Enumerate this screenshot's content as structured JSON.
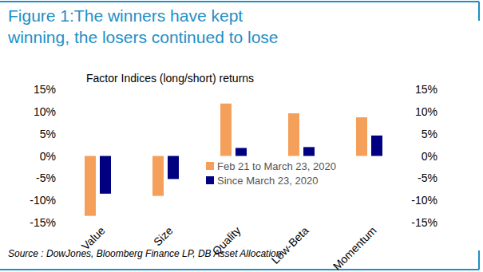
{
  "chart_data": {
    "type": "bar",
    "title": "Figure 1:The winners have kept winning, the losers continued to lose",
    "subtitle": "Factor Indices (long/short) returns",
    "source": "Source : DowJones, Bloomberg Finance LP, DB Asset Allocation",
    "categories": [
      "Value",
      "Size",
      "Quality",
      "Low-Beta",
      "Momentum"
    ],
    "series": [
      {
        "name": "Feb 21 to March 23, 2020",
        "color": "#f5a05a",
        "values": [
          -13.5,
          -9,
          11.8,
          9.6,
          8.7
        ]
      },
      {
        "name": "Since March 23, 2020",
        "color": "#000080",
        "values": [
          -8.5,
          -5.2,
          1.8,
          2,
          4.6
        ]
      }
    ],
    "ylim": [
      -15,
      15
    ],
    "yticks": [
      {
        "value": -15,
        "label": "-15%"
      },
      {
        "value": -10,
        "label": "-10%"
      },
      {
        "value": -5,
        "label": "-5%"
      },
      {
        "value": 0,
        "label": "0%"
      },
      {
        "value": 5,
        "label": "5%"
      },
      {
        "value": 10,
        "label": "10%"
      },
      {
        "value": 15,
        "label": "15%"
      }
    ],
    "y2lim": [
      -15,
      15
    ],
    "y2ticks": [
      {
        "value": -15,
        "label": "-15%"
      },
      {
        "value": -10,
        "label": "-10%"
      },
      {
        "value": -5,
        "label": "-5%"
      },
      {
        "value": 0,
        "label": "0%"
      },
      {
        "value": 5,
        "label": "5%"
      },
      {
        "value": 10,
        "label": "10%"
      },
      {
        "value": 15,
        "label": "15%"
      }
    ],
    "legend": "lower right",
    "grid": false
  }
}
